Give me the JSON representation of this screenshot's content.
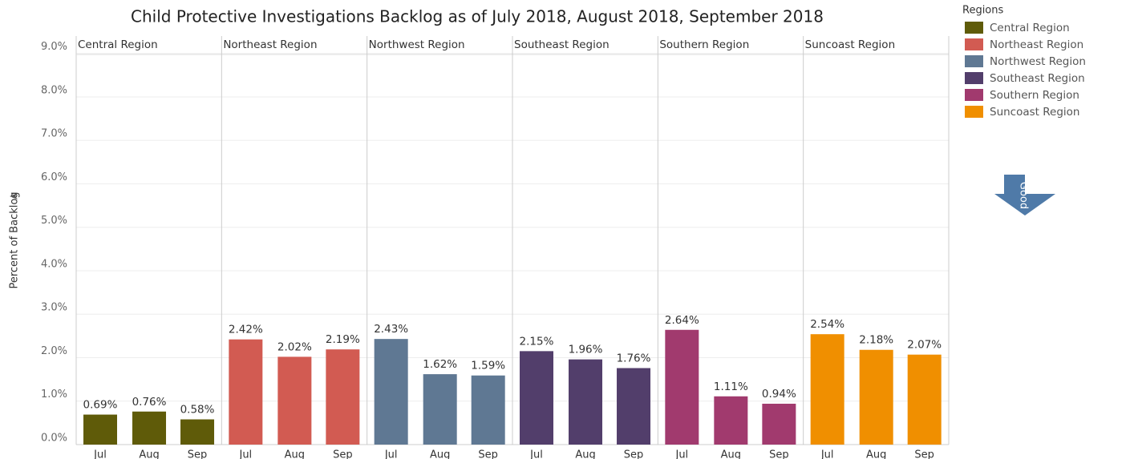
{
  "chart_data": {
    "type": "bar",
    "title": "Child Protective Investigations Backlog as of July 2018, August 2018, September 2018",
    "y_label": "Percent of Backlog",
    "legend_title": "Regions",
    "annotation": "Good",
    "categories": [
      "Jul",
      "Aug",
      "Sep"
    ],
    "series": [
      {
        "name": "Central Region",
        "color": "#5f5b09",
        "values": [
          0.69,
          0.76,
          0.58
        ],
        "value_labels": [
          "0.69%",
          "0.76%",
          "0.58%"
        ]
      },
      {
        "name": "Northeast Region",
        "color": "#d25b52",
        "values": [
          2.42,
          2.02,
          2.19
        ],
        "value_labels": [
          "2.42%",
          "2.02%",
          "2.19%"
        ]
      },
      {
        "name": "Northwest Region",
        "color": "#5f7893",
        "values": [
          2.43,
          1.62,
          1.59
        ],
        "value_labels": [
          "2.43%",
          "1.62%",
          "1.59%"
        ]
      },
      {
        "name": "Southeast Region",
        "color": "#523e6b",
        "values": [
          2.15,
          1.96,
          1.76
        ],
        "value_labels": [
          "2.15%",
          "1.96%",
          "1.76%"
        ]
      },
      {
        "name": "Southern Region",
        "color": "#a13a6e",
        "values": [
          2.64,
          1.11,
          0.94
        ],
        "value_labels": [
          "2.64%",
          "1.11%",
          "0.94%"
        ]
      },
      {
        "name": "Suncoast Region",
        "color": "#f08f00",
        "values": [
          2.54,
          2.18,
          2.07
        ],
        "value_labels": [
          "2.54%",
          "2.18%",
          "2.07%"
        ]
      }
    ],
    "ylim": [
      0,
      9.4
    ],
    "yticks": [
      {
        "value": 0,
        "label": "0.0%"
      },
      {
        "value": 1,
        "label": "1.0%"
      },
      {
        "value": 2,
        "label": "2.0%"
      },
      {
        "value": 3,
        "label": "3.0%"
      },
      {
        "value": 4,
        "label": "4.0%"
      },
      {
        "value": 5,
        "label": "5.0%"
      },
      {
        "value": 6,
        "label": "6.0%"
      },
      {
        "value": 7,
        "label": "7.0%"
      },
      {
        "value": 8,
        "label": "8.0%"
      },
      {
        "value": 9,
        "label": "9.0%"
      }
    ],
    "grid": true
  }
}
